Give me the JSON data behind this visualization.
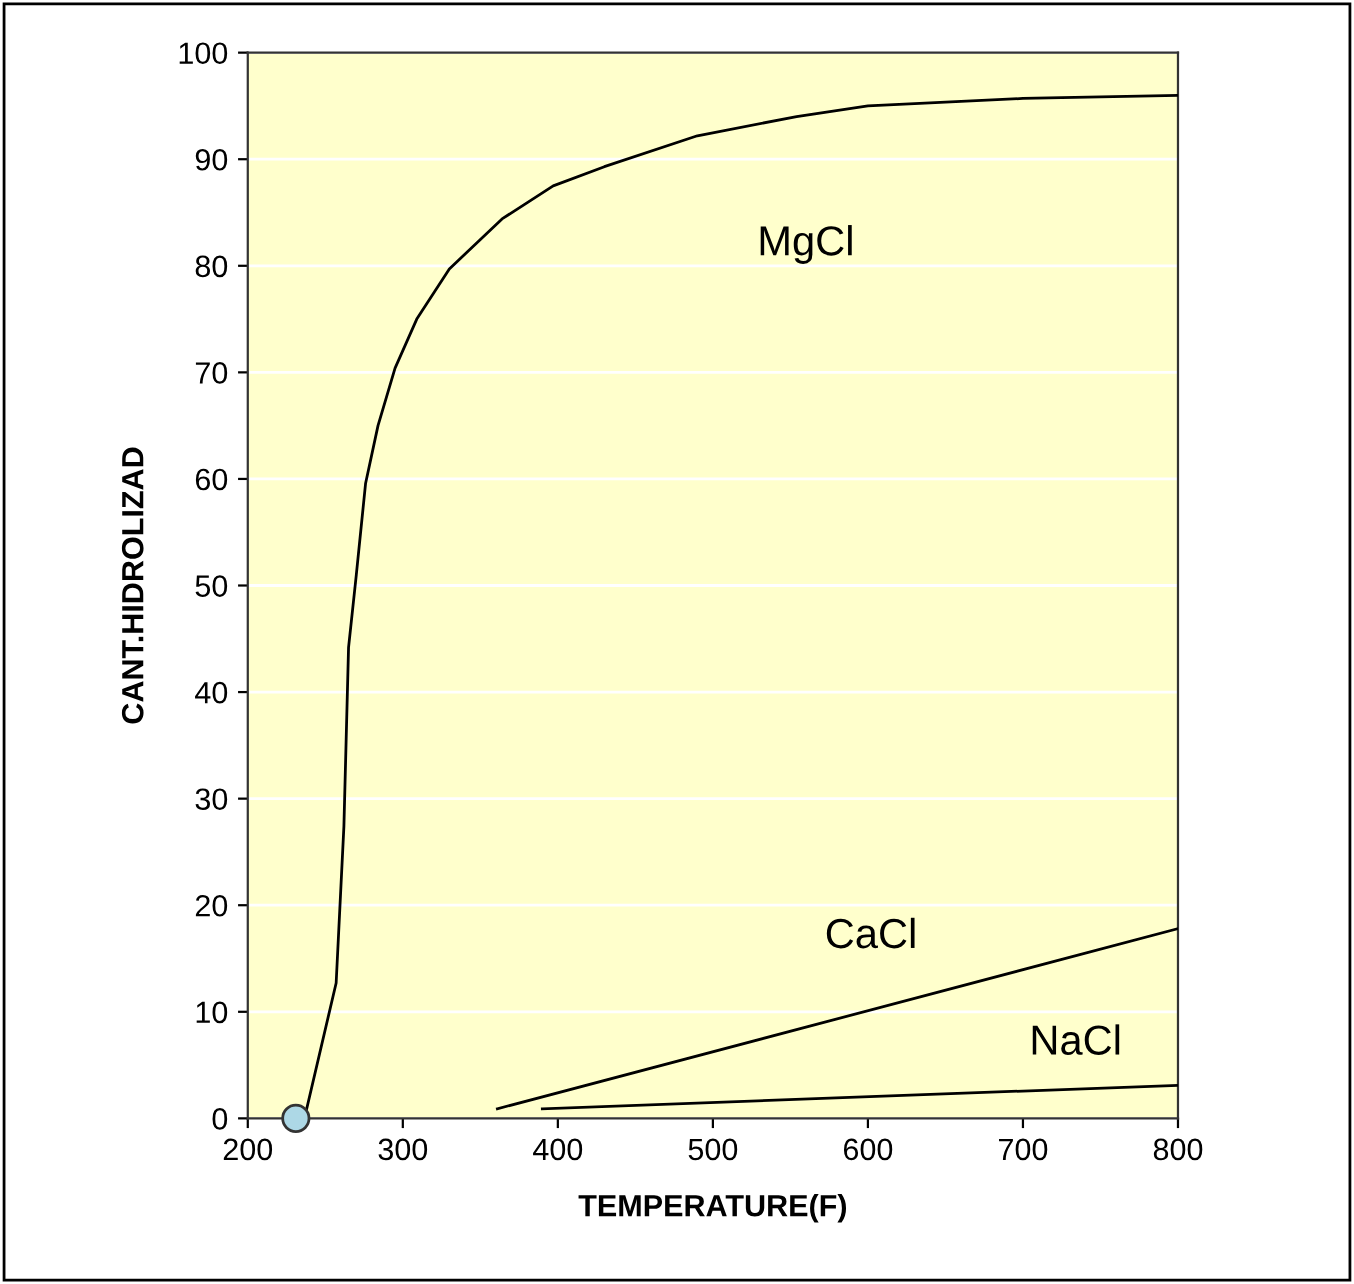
{
  "chart_data": {
    "type": "line",
    "xlabel": "TEMPERATURE(F)",
    "ylabel": "CANT.HIDROLIZAD",
    "xlim": [
      200,
      800
    ],
    "xticks": [
      200,
      300,
      400,
      500,
      600,
      700,
      800
    ],
    "ylim": [
      0,
      100
    ],
    "yticks": [
      0,
      10,
      20,
      30,
      40,
      50,
      60,
      70,
      80,
      90,
      100
    ],
    "grid": "y",
    "marker": "none",
    "line_style": "solid",
    "series": [
      {
        "name": "MgCl",
        "color": "#000000",
        "x": [
          237.5,
          257,
          262,
          265,
          270,
          276,
          284,
          295,
          309,
          330,
          364,
          397,
          430,
          490,
          554,
          600,
          700,
          800
        ],
        "values": [
          0.6,
          12.7,
          27.4,
          44.2,
          51,
          59.6,
          65,
          70.4,
          75,
          79.7,
          84.4,
          87.5,
          89.3,
          92.2,
          94,
          95,
          95.7,
          96
        ]
      },
      {
        "name": "CaCl",
        "color": "#000000",
        "x": [
          361,
          800
        ],
        "values": [
          0.9,
          17.8
        ]
      },
      {
        "name": "NaCl",
        "color": "#000000",
        "x": [
          390,
          800
        ],
        "values": [
          0.9,
          3.1
        ]
      },
      {
        "type": "scatter",
        "color": "#add8e6",
        "x": [
          231
        ],
        "values": [
          0
        ],
        "marker": "circle"
      }
    ]
  }
}
